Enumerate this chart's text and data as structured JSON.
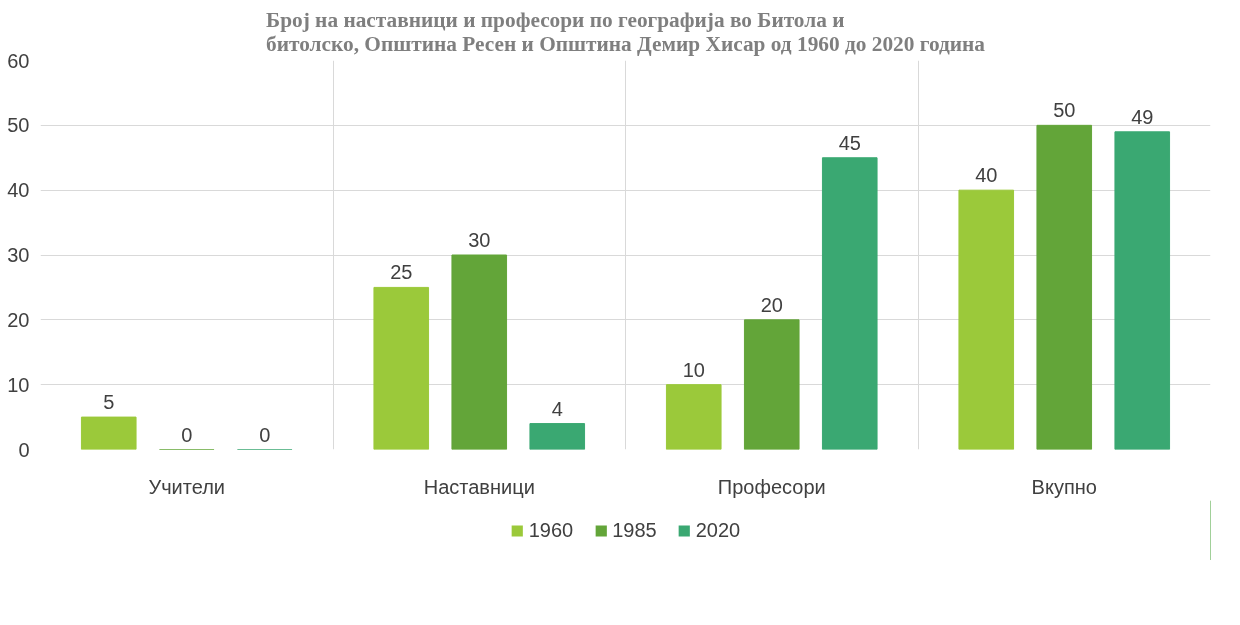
{
  "chart_data": {
    "type": "bar",
    "title": "Број на наставници и професори по географија во Битола и\nбитолско, Општина Ресен и Општина Демир Хисар од 1960 до 2020 година",
    "categories": [
      "Учители",
      "Наставници",
      "Професори",
      "Вкупно"
    ],
    "series": [
      {
        "name": "1960",
        "color": "#9bc93a",
        "values": [
          5,
          25,
          10,
          40
        ]
      },
      {
        "name": "1985",
        "color": "#63a539",
        "values": [
          0,
          30,
          20,
          50
        ]
      },
      {
        "name": "2020",
        "color": "#3aa872",
        "values": [
          0,
          4,
          45,
          49
        ]
      }
    ],
    "ylim": [
      0,
      60
    ],
    "yticks": [
      0,
      10,
      20,
      30,
      40,
      50,
      60
    ],
    "grid": true,
    "legend": "bottom",
    "data_labels": true
  }
}
